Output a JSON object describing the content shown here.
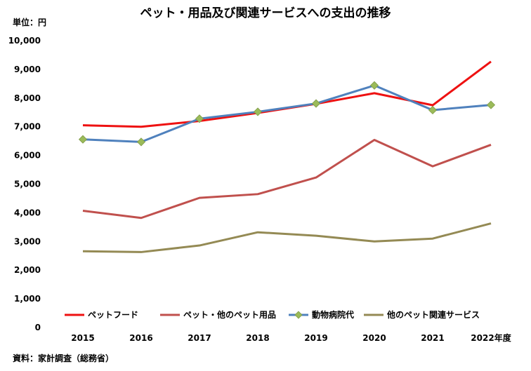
{
  "chart_data": {
    "type": "line",
    "title": "ペット・用品及び関連サービスへの支出の推移",
    "unit_label": "単位：円",
    "source": "資料：家計調査（総務省）",
    "x": [
      "2015",
      "2016",
      "2017",
      "2018",
      "2019",
      "2020",
      "2021",
      "2022年度"
    ],
    "ylim": [
      0,
      10000
    ],
    "yticks": [
      0,
      1000,
      2000,
      3000,
      4000,
      5000,
      6000,
      7000,
      8000,
      9000,
      10000
    ],
    "ytick_labels": [
      "0",
      "1,000",
      "2,000",
      "3,000",
      "4,000",
      "5,000",
      "6,000",
      "7,000",
      "8,000",
      "9,000",
      "10,000"
    ],
    "grid": false,
    "legend_position": "bottom",
    "series": [
      {
        "name": "ペットフード",
        "color": "#ee1111",
        "marker": "none",
        "values": [
          7050,
          7000,
          7200,
          7480,
          7800,
          8170,
          7750,
          9270
        ]
      },
      {
        "name": "ペット・他のペット用品",
        "color": "#c0504d",
        "marker": "none",
        "values": [
          4070,
          3820,
          4520,
          4650,
          5230,
          6540,
          5620,
          6370
        ]
      },
      {
        "name": "動物病院代",
        "color": "#4f81bd",
        "marker": "diamond",
        "marker_color": "#9bbb59",
        "values": [
          6560,
          6470,
          7280,
          7520,
          7810,
          8440,
          7580,
          7760
        ]
      },
      {
        "name": "他のペット関連サービス",
        "color": "#948a54",
        "marker": "none",
        "values": [
          2660,
          2630,
          2860,
          3320,
          3200,
          3000,
          3100,
          3630
        ]
      }
    ]
  }
}
